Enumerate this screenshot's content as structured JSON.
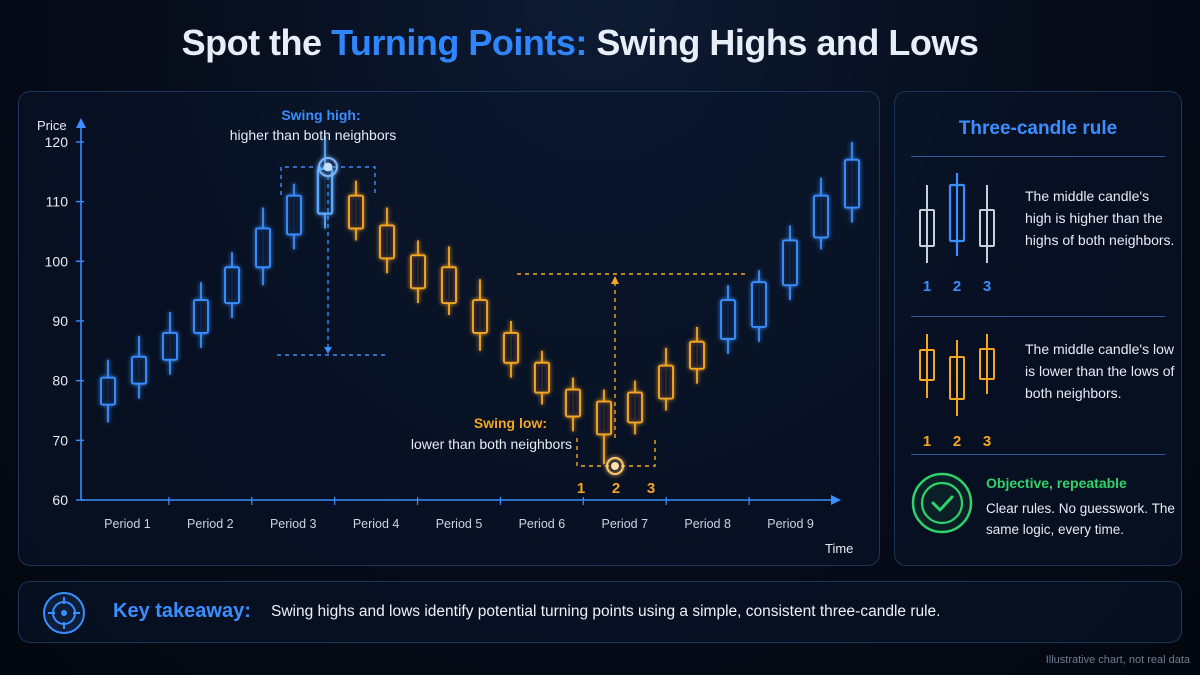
{
  "title": {
    "prefix": "Spot the",
    "accent": "Turning Points:",
    "suffix": "Swing Highs and Lows"
  },
  "chart_data": {
    "type": "candlestick",
    "ylabel": "Price",
    "xlabel": "Time",
    "ylim": [
      60,
      122
    ],
    "yticks": [
      60,
      70,
      80,
      90,
      100,
      110,
      120
    ],
    "categories": [
      "Period 1",
      "Period 2",
      "Period 3",
      "Period 4",
      "Period 5",
      "Period 6",
      "Period 7",
      "Period 8",
      "Period 9"
    ],
    "candles": [
      {
        "open": 76,
        "close": 80.5,
        "high": 83.5,
        "low": 73,
        "color": "blue"
      },
      {
        "open": 79.5,
        "close": 84,
        "high": 87.5,
        "low": 77,
        "color": "blue"
      },
      {
        "open": 83.5,
        "close": 88,
        "high": 91.5,
        "low": 81,
        "color": "blue"
      },
      {
        "open": 88,
        "close": 93.5,
        "high": 96.5,
        "low": 85.5,
        "color": "blue"
      },
      {
        "open": 93,
        "close": 99,
        "high": 101.5,
        "low": 90.5,
        "color": "blue"
      },
      {
        "open": 99,
        "close": 105.5,
        "high": 109,
        "low": 96,
        "color": "blue"
      },
      {
        "open": 104.5,
        "close": 111,
        "high": 113,
        "low": 102,
        "color": "blue"
      },
      {
        "open": 108,
        "close": 115.5,
        "high": 121,
        "low": 105.5,
        "color": "blue-highlight"
      },
      {
        "open": 111,
        "close": 105.5,
        "high": 113.5,
        "low": 103.5,
        "color": "orange"
      },
      {
        "open": 106,
        "close": 100.5,
        "high": 109,
        "low": 98,
        "color": "orange"
      },
      {
        "open": 101,
        "close": 95.5,
        "high": 103.5,
        "low": 93,
        "color": "orange"
      },
      {
        "open": 99,
        "close": 93,
        "high": 102.5,
        "low": 91,
        "color": "orange"
      },
      {
        "open": 93.5,
        "close": 88,
        "high": 97,
        "low": 85,
        "color": "orange"
      },
      {
        "open": 88,
        "close": 83,
        "high": 90,
        "low": 80.5,
        "color": "orange"
      },
      {
        "open": 83,
        "close": 78,
        "high": 85,
        "low": 76,
        "color": "orange"
      },
      {
        "open": 78.5,
        "close": 74,
        "high": 80.5,
        "low": 71.5,
        "color": "orange"
      },
      {
        "open": 76.5,
        "close": 71,
        "high": 78.5,
        "low": 66,
        "color": "orange"
      },
      {
        "open": 73,
        "close": 78,
        "high": 80,
        "low": 71,
        "color": "orange"
      },
      {
        "open": 77,
        "close": 82.5,
        "high": 85.5,
        "low": 75,
        "color": "orange"
      },
      {
        "open": 82,
        "close": 86.5,
        "high": 89,
        "low": 79.5,
        "color": "orange"
      },
      {
        "open": 87,
        "close": 93.5,
        "high": 96,
        "low": 84.5,
        "color": "blue"
      },
      {
        "open": 89,
        "close": 96.5,
        "high": 98.5,
        "low": 86.5,
        "color": "blue"
      },
      {
        "open": 96,
        "close": 103.5,
        "high": 106,
        "low": 93.5,
        "color": "blue"
      },
      {
        "open": 104,
        "close": 111,
        "high": 114,
        "low": 102,
        "color": "blue"
      },
      {
        "open": 109,
        "close": 117,
        "high": 120,
        "low": 106.5,
        "color": "blue"
      }
    ],
    "annotations": {
      "swing_high_label": "Swing high:",
      "swing_high_sub": "higher than both neighbors",
      "swing_low_label": "Swing low:",
      "swing_low_sub": "lower than both neighbors",
      "swing_low_numbers": [
        "1",
        "2",
        "3"
      ]
    }
  },
  "rule_panel": {
    "title": "Three-candle rule",
    "high_text": "The middle candle's high is higher than the highs of both neighbors.",
    "low_text": "The middle candle's low is lower than the lows of both neighbors.",
    "numbers": [
      "1",
      "2",
      "3"
    ],
    "objective_title": "Objective, repeatable",
    "objective_text": "Clear rules. No guesswork. The same logic, every time."
  },
  "takeaway": {
    "label": "Key takeaway:",
    "text": "Swing highs and lows identify potential turning points using a simple, consistent three-candle rule."
  },
  "footnote": "Illustrative chart, not real data",
  "colors": {
    "blue": "#3a8eff",
    "orange": "#f5a623",
    "green": "#2fd36b",
    "background": "#050b17"
  }
}
